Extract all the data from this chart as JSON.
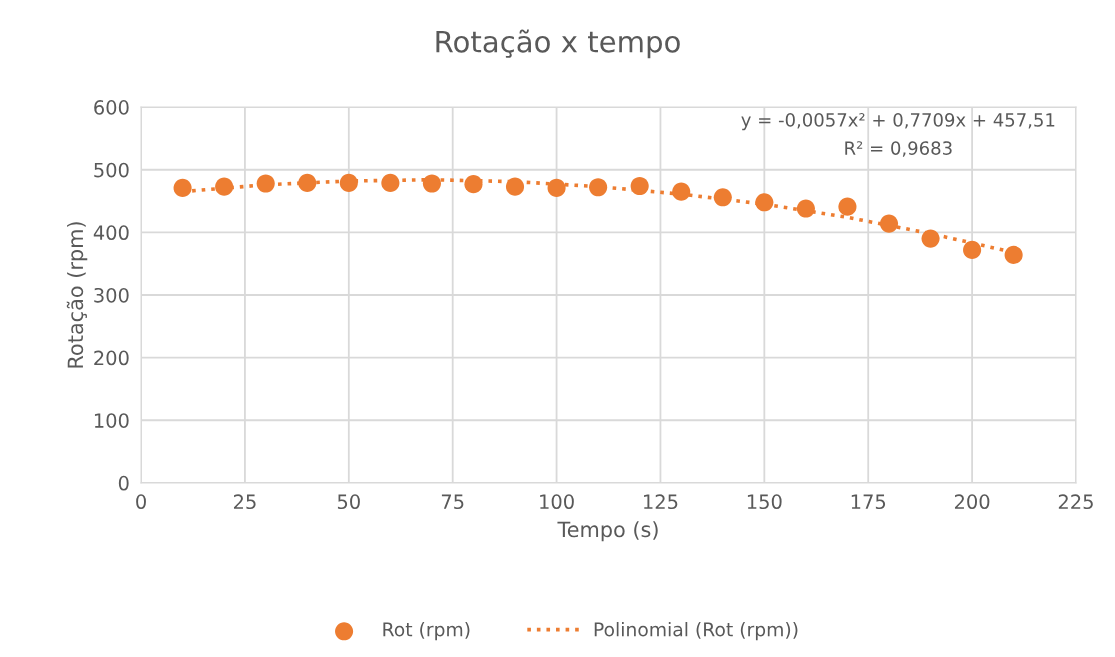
{
  "chart_data": {
    "type": "scatter",
    "title": "Rotação x tempo",
    "xlabel": "Tempo (s)",
    "ylabel": "Rotação (rpm)",
    "annotations": [
      "y = -0,0057x² + 0,7709x + 457,51",
      "R² = 0,9683"
    ],
    "x": [
      10,
      20,
      30,
      40,
      50,
      60,
      70,
      80,
      90,
      100,
      110,
      120,
      130,
      140,
      150,
      160,
      170,
      180,
      190,
      200,
      210
    ],
    "series": [
      {
        "name": "Rot (rpm)",
        "color": "#ed7d31",
        "marker": "circle",
        "values": [
          471,
          473,
          478,
          479,
          479,
          479,
          478,
          477,
          473,
          471,
          472,
          474,
          465,
          456,
          448,
          438,
          441,
          414,
          390,
          372,
          364
        ]
      },
      {
        "name": "Polinomial (Rot (rpm))",
        "color": "#ed7d31",
        "type": "line",
        "line_style": "dotted",
        "marker": "none",
        "x": [
          10,
          30,
          50,
          70,
          90,
          110,
          130,
          150,
          170,
          190,
          210
        ],
        "values": [
          465,
          476,
          482,
          484,
          481,
          473,
          461,
          445,
          424,
          398,
          368
        ]
      }
    ],
    "xlim": [
      0,
      225
    ],
    "xticks": [
      0,
      25,
      50,
      75,
      100,
      125,
      150,
      175,
      200,
      225
    ],
    "ylim": [
      0,
      600
    ],
    "yticks": [
      0,
      100,
      200,
      300,
      400,
      500,
      600
    ],
    "grid": true,
    "legend": "bottom"
  }
}
